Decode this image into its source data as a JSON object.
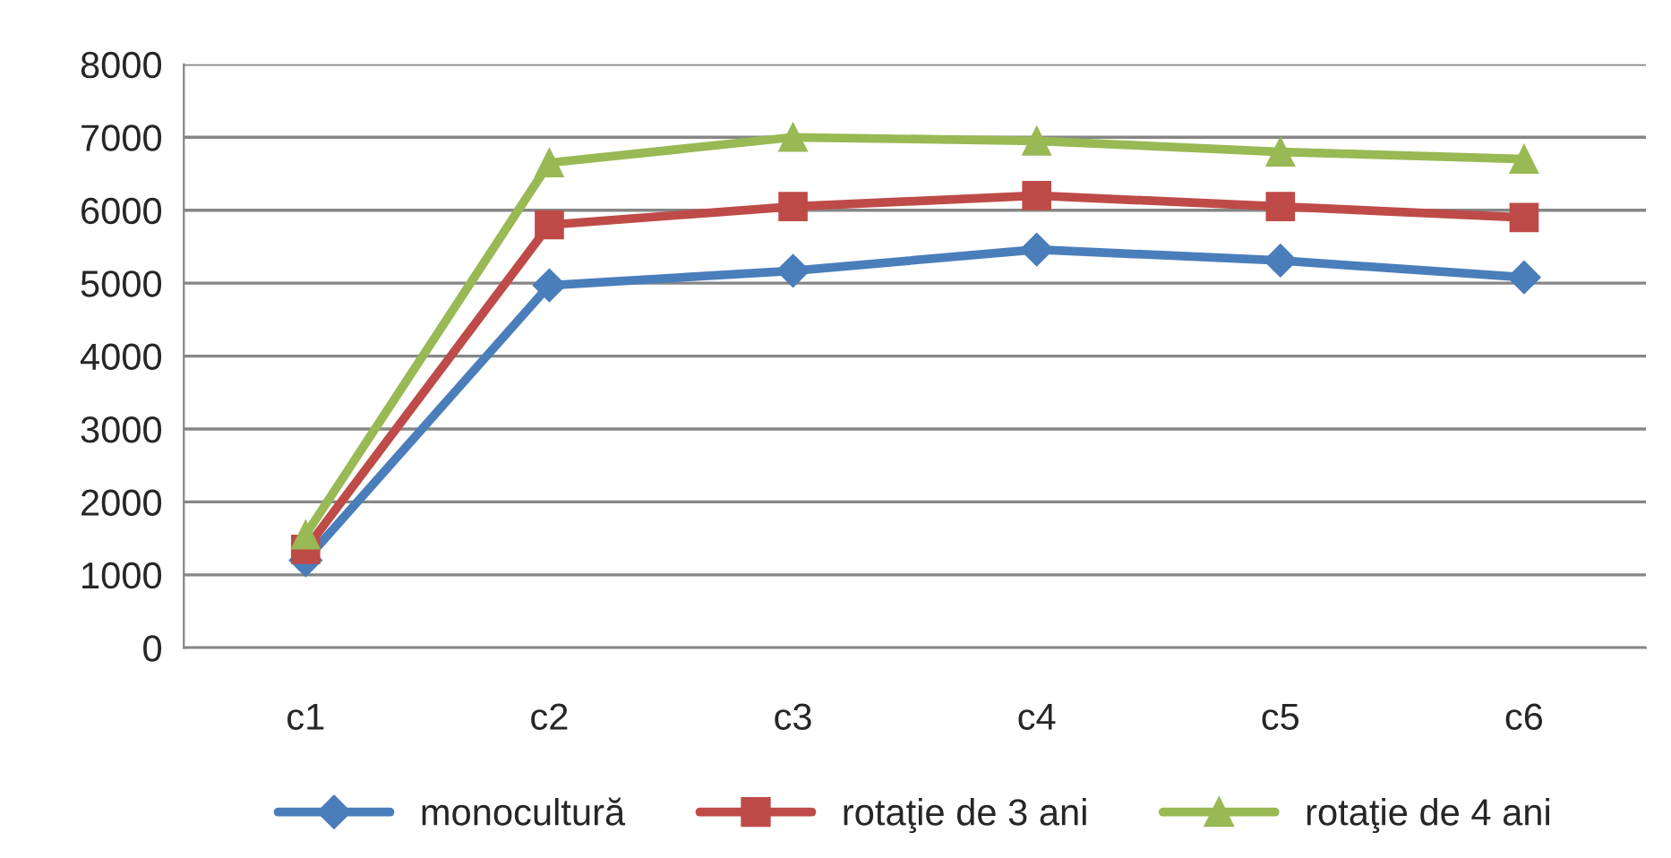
{
  "chart_data": {
    "type": "line",
    "categories": [
      "c1",
      "c2",
      "c3",
      "c4",
      "c5",
      "c6"
    ],
    "series": [
      {
        "name": "monocultură",
        "color": "#4a7ebb",
        "values": [
          1200,
          4970,
          5170,
          5460,
          5310,
          5080
        ],
        "marker": "diamond"
      },
      {
        "name": "rotaţie de 3 ani",
        "color": "#be4b48",
        "values": [
          1350,
          5800,
          6050,
          6200,
          6050,
          5900
        ],
        "marker": "square"
      },
      {
        "name": "rotaţie de 4 ani",
        "color": "#98b954",
        "values": [
          1550,
          6650,
          7000,
          6950,
          6800,
          6700
        ],
        "marker": "triangle"
      }
    ],
    "ylim": [
      0,
      8000
    ],
    "yticks": [
      0,
      1000,
      2000,
      3000,
      4000,
      5000,
      6000,
      7000,
      8000
    ],
    "grid": "y",
    "legend": "bottom",
    "line_style": "solid"
  }
}
